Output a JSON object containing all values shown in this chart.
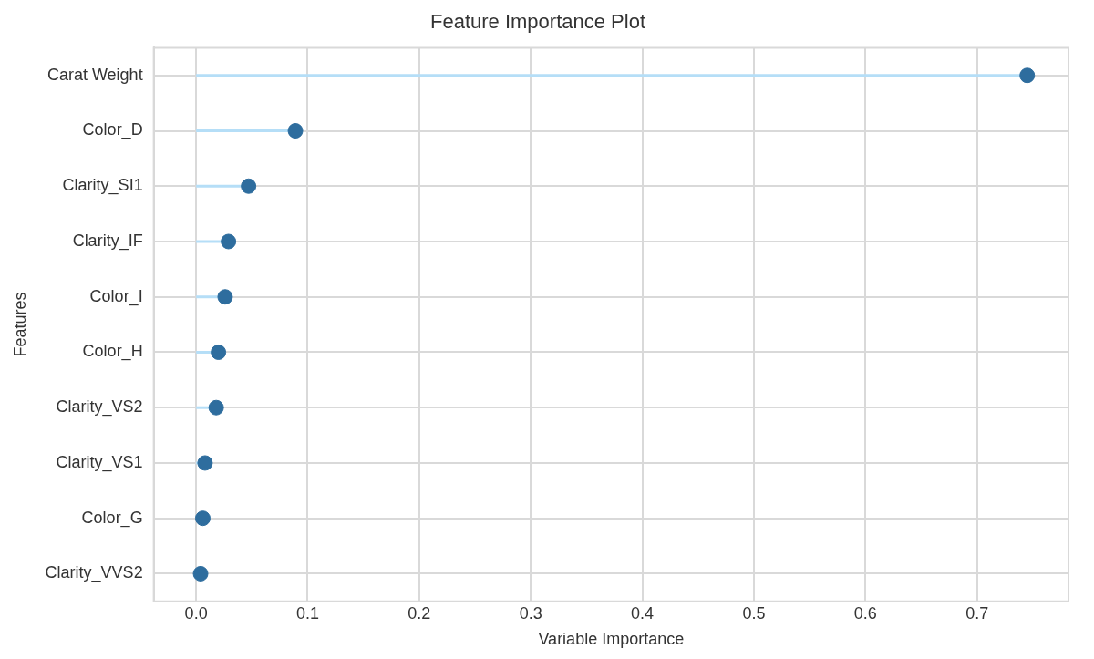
{
  "chart_data": {
    "type": "lollipop",
    "orientation": "horizontal",
    "title": "Feature Importance Plot",
    "xlabel": "Variable Importance",
    "ylabel": "Features",
    "categories": [
      "Carat Weight",
      "Color_D",
      "Clarity_SI1",
      "Clarity_IF",
      "Color_I",
      "Color_H",
      "Clarity_VS2",
      "Clarity_VS1",
      "Color_G",
      "Clarity_VVS2"
    ],
    "values": [
      0.745,
      0.089,
      0.047,
      0.029,
      0.026,
      0.02,
      0.018,
      0.008,
      0.006,
      0.004
    ],
    "color": "#2e6d9e",
    "xlim": [
      -0.038,
      0.782
    ],
    "xticks": [
      {
        "value": 0,
        "label": "0.0"
      },
      {
        "value": 0.1,
        "label": "0.1"
      },
      {
        "value": 0.2,
        "label": "0.2"
      },
      {
        "value": 0.3,
        "label": "0.3"
      },
      {
        "value": 0.4,
        "label": "0.4"
      },
      {
        "value": 0.5,
        "label": "0.5"
      },
      {
        "value": 0.6,
        "label": "0.6"
      },
      {
        "value": 0.7,
        "label": "0.7"
      }
    ],
    "grid": true,
    "marker": "circle"
  }
}
